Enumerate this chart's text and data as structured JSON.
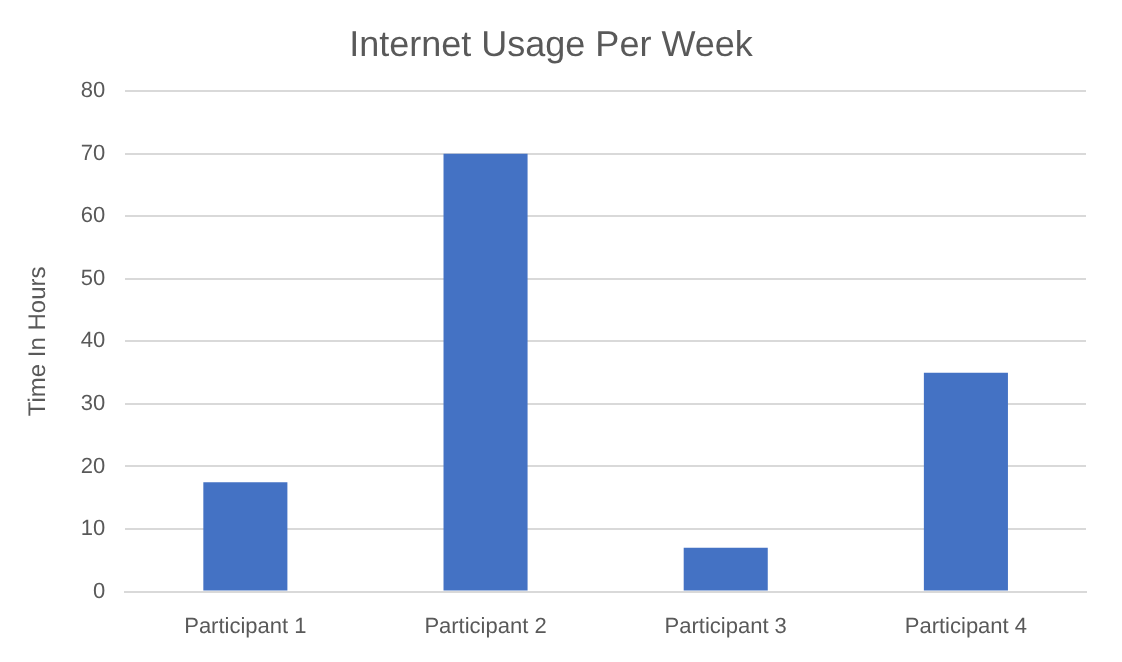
{
  "chart_data": {
    "type": "bar",
    "title": "Internet Usage Per Week",
    "ylabel": "Time In Hours",
    "categories": [
      "Participant 1",
      "Participant 2",
      "Participant 3",
      "Participant 4"
    ],
    "values": [
      17.5,
      70,
      7,
      35
    ],
    "color": "#4472c4",
    "ylim": [
      0,
      80
    ],
    "yticks": [
      0,
      10,
      20,
      30,
      40,
      50,
      60,
      70,
      80
    ],
    "grid": "y"
  }
}
